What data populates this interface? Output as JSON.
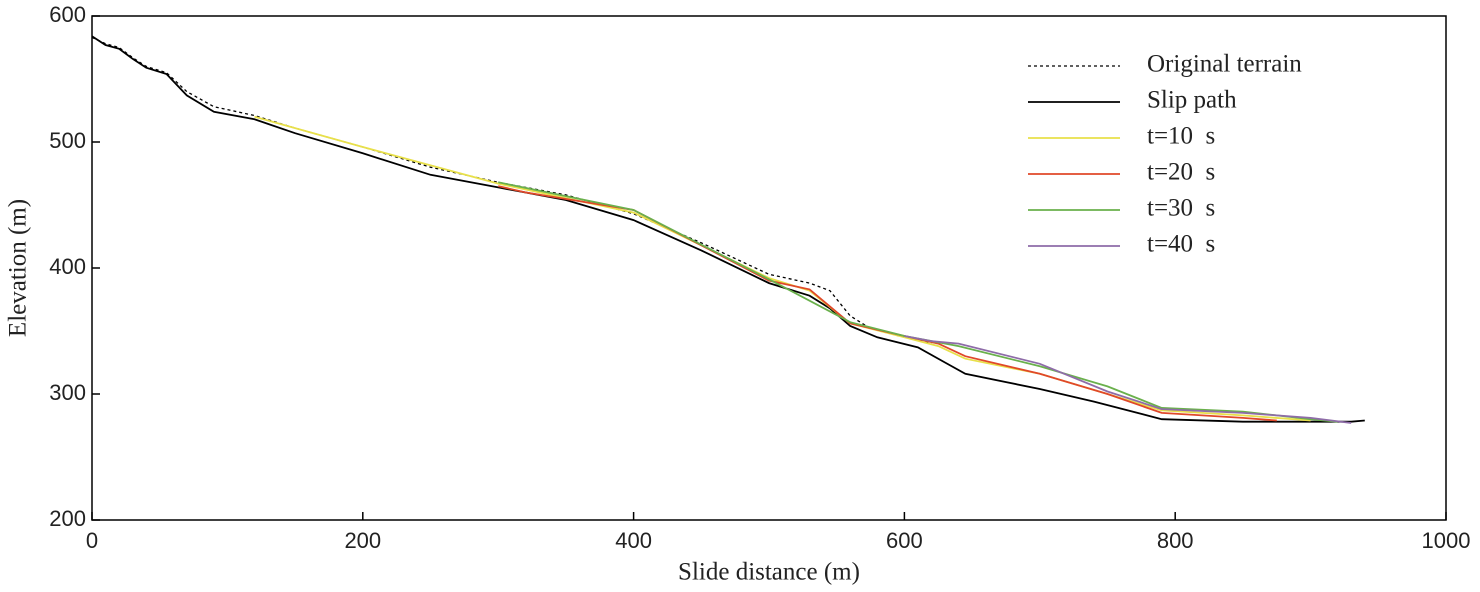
{
  "chart_data": {
    "type": "line",
    "x_label": "Slide distance  (m)",
    "y_label": "Elevation  (m)",
    "xlim": [
      0,
      1000
    ],
    "xticks": [
      0,
      200,
      400,
      600,
      800,
      1000
    ],
    "ylim": [
      200,
      600
    ],
    "yticks": [
      200,
      300,
      400,
      500,
      600
    ],
    "legend": "upper right",
    "series": [
      {
        "name": "Original terrain",
        "color": "#000000",
        "dash": "dotted",
        "x": [
          0,
          10,
          20,
          30,
          40,
          55,
          70,
          90,
          120,
          150,
          200,
          250,
          300,
          350,
          400,
          450,
          500,
          530,
          545,
          560,
          575,
          600,
          620
        ],
        "values": [
          583,
          578,
          575,
          567,
          560,
          555,
          540,
          528,
          521,
          511,
          496,
          480,
          468,
          458,
          443,
          420,
          395,
          388,
          382,
          362,
          352,
          345,
          340
        ]
      },
      {
        "name": "Slip path",
        "color": "#000000",
        "x": [
          0,
          10,
          20,
          30,
          40,
          55,
          70,
          90,
          120,
          150,
          200,
          250,
          300,
          350,
          400,
          450,
          500,
          530,
          545,
          560,
          580,
          610,
          630,
          645,
          700,
          740,
          790,
          850,
          930,
          940
        ],
        "values": [
          584,
          577,
          574,
          566,
          559,
          554,
          537,
          524,
          518,
          507,
          491,
          474,
          464,
          454,
          438,
          414,
          388,
          378,
          368,
          354,
          345,
          337,
          325,
          316,
          304,
          294,
          280,
          278,
          278,
          279
        ]
      },
      {
        "name": "t=10  s",
        "color": "#e8e04a",
        "x": [
          120,
          200,
          300,
          400,
          500,
          530,
          560,
          600,
          625,
          645,
          700,
          750,
          790,
          850,
          900
        ],
        "values": [
          520,
          496,
          467,
          444,
          392,
          382,
          356,
          345,
          338,
          328,
          316,
          300,
          287,
          283,
          279
        ]
      },
      {
        "name": "t=20  s",
        "color": "#e0482a",
        "x": [
          300,
          320,
          400,
          500,
          530,
          560,
          600,
          625,
          645,
          700,
          750,
          790,
          850,
          875
        ],
        "values": [
          465,
          460,
          446,
          390,
          383,
          356,
          346,
          340,
          330,
          316,
          300,
          285,
          281,
          279
        ]
      },
      {
        "name": "t=30  s",
        "color": "#6ab04c",
        "x": [
          300,
          400,
          500,
          560,
          600,
          640,
          700,
          750,
          790,
          850,
          900,
          920
        ],
        "values": [
          468,
          446,
          391,
          357,
          346,
          338,
          322,
          306,
          289,
          286,
          280,
          278
        ]
      },
      {
        "name": "t=40  s",
        "color": "#8e6ca8",
        "x": [
          600,
          620,
          640,
          700,
          750,
          790,
          850,
          900,
          930
        ],
        "values": [
          346,
          342,
          340,
          324,
          302,
          288,
          285,
          281,
          277
        ]
      }
    ]
  }
}
